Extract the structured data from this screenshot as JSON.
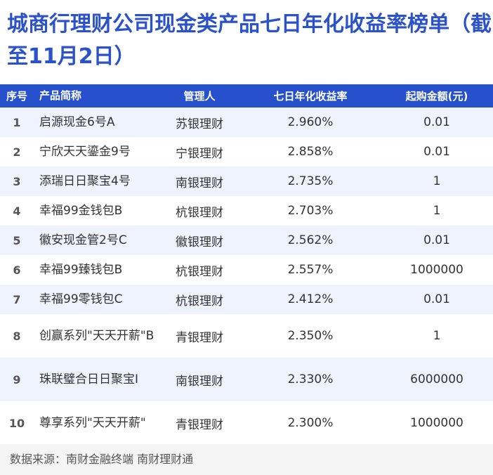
{
  "title": "城商行理财公司现金类产品七日年化收益率榜单（截至11月2日）",
  "table": {
    "headers": {
      "rank": "序号",
      "name": "产品简称",
      "manager": "管理人",
      "yield": "七日年化收益率",
      "min_purchase": "起购金额(元)"
    },
    "rows": [
      {
        "rank": "1",
        "name": "启源现金6号A",
        "manager": "苏银理财",
        "yield": "2.960%",
        "min_purchase": "0.01"
      },
      {
        "rank": "2",
        "name": "宁欣天天鎏金9号",
        "manager": "宁银理财",
        "yield": "2.858%",
        "min_purchase": "0.01"
      },
      {
        "rank": "3",
        "name": "添瑞日日聚宝4号",
        "manager": "南银理财",
        "yield": "2.735%",
        "min_purchase": "1"
      },
      {
        "rank": "4",
        "name": "幸福99金钱包B",
        "manager": "杭银理财",
        "yield": "2.703%",
        "min_purchase": "1"
      },
      {
        "rank": "5",
        "name": "徽安现金管2号C",
        "manager": "徽银理财",
        "yield": "2.562%",
        "min_purchase": "0.01"
      },
      {
        "rank": "6",
        "name": "幸福99臻钱包B",
        "manager": "杭银理财",
        "yield": "2.557%",
        "min_purchase": "1000000"
      },
      {
        "rank": "7",
        "name": "幸福99零钱包C",
        "manager": "杭银理财",
        "yield": "2.412%",
        "min_purchase": "0.01"
      },
      {
        "rank": "8",
        "name": "创赢系列\"天天开薪\"B",
        "manager": "青银理财",
        "yield": "2.350%",
        "min_purchase": "1"
      },
      {
        "rank": "9",
        "name": "珠联璧合日日聚宝I",
        "manager": "南银理财",
        "yield": "2.330%",
        "min_purchase": "6000000"
      },
      {
        "rank": "10",
        "name": "尊享系列\"天天开薪\"",
        "manager": "青银理财",
        "yield": "2.300%",
        "min_purchase": "1000000"
      }
    ]
  },
  "footer": {
    "source": "数据来源：南财金融终端 南财理财通"
  },
  "colors": {
    "title": "#2b52c9",
    "header_bg": "#2650cc",
    "alt_row_bg": "#eef3fd",
    "footer_bg": "#f5f5f5"
  }
}
